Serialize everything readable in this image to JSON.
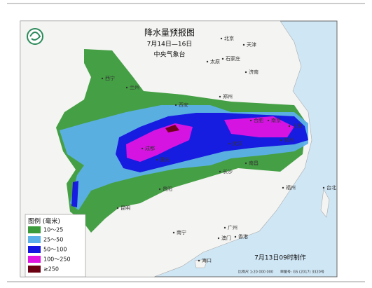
{
  "header": {
    "title": "降水量预报图",
    "period": "7月14日—16日",
    "issuer": "中央气象台"
  },
  "legend": {
    "title": "图例 (毫米)",
    "items": [
      {
        "label": "10～25",
        "color": "#3b9b3b"
      },
      {
        "label": "25～50",
        "color": "#5cb0ea"
      },
      {
        "label": "50～100",
        "color": "#1414e0"
      },
      {
        "label": "100～250",
        "color": "#e014e0"
      },
      {
        "label": "≥250",
        "color": "#6b0012"
      }
    ]
  },
  "cities": [
    "北京",
    "天津",
    "太原",
    "石家庄",
    "济南",
    "西宁",
    "兰州",
    "郑州",
    "西安",
    "合肥",
    "南京",
    "上海",
    "杭州",
    "武汉",
    "成都",
    "重庆",
    "长沙",
    "南昌",
    "贵阳",
    "福州",
    "昆明",
    "南宁",
    "广州",
    "香港",
    "澳门",
    "台北",
    "海口"
  ],
  "footer": {
    "made": "7月13日09时制作",
    "scale": "比例尺 1:20 000 000",
    "approval": "审图号: GS (2017) 3320号"
  }
}
